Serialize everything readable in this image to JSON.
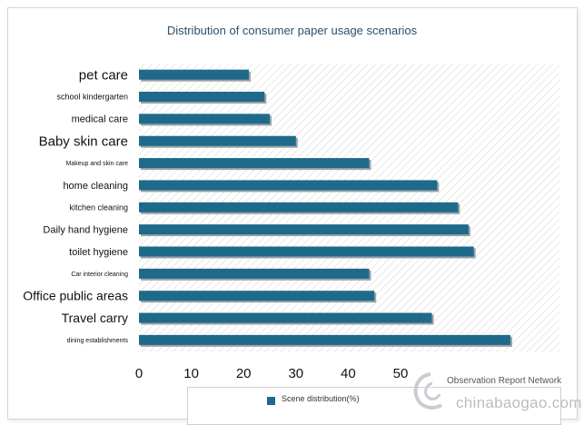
{
  "chart_data": {
    "type": "bar",
    "orientation": "horizontal",
    "title": "Distribution of consumer paper usage scenarios",
    "categories": [
      "pet care",
      "school kindergarten",
      "medical care",
      "Baby skin care",
      "Makeup and skin care",
      "home cleaning",
      "kitchen cleaning",
      "Daily hand hygiene",
      "toilet hygiene",
      "Car interior cleaning",
      "Office public areas",
      "Travel carry",
      "dining establishments"
    ],
    "series": [
      {
        "name": "Scene distribution(%)",
        "values": [
          21,
          24,
          25,
          30,
          44,
          57,
          61,
          63,
          64,
          44,
          45,
          56,
          71
        ]
      }
    ],
    "xticks": [
      "0",
      "10",
      "20",
      "30",
      "40",
      "50"
    ],
    "xlim": [
      0,
      75
    ],
    "legend_position": "bottom",
    "bar_color": "#1f6a8a"
  },
  "watermark": {
    "source": "Observation Report Network",
    "site": "chinabaogao.com"
  }
}
